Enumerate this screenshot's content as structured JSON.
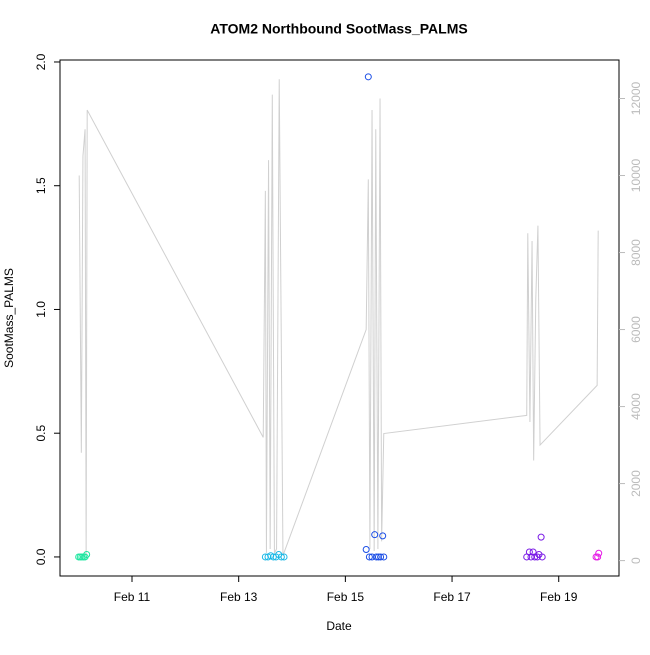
{
  "chart_data": {
    "type": "scatter",
    "title": "ATOM2 Northbound SootMass_PALMS",
    "x_label": "Date",
    "y_label": "SootMass_PALMS",
    "xlim": [
      9.65,
      20.13
    ],
    "xticks": [
      {
        "value": 11,
        "label": "Feb 11"
      },
      {
        "value": 13,
        "label": "Feb 13"
      },
      {
        "value": 15,
        "label": "Feb 15"
      },
      {
        "value": 17,
        "label": "Feb 17"
      },
      {
        "value": 19,
        "label": "Feb 19"
      }
    ],
    "ylim": [
      -0.077,
      2.008
    ],
    "yticks": [
      {
        "value": 0,
        "label": "0.0"
      },
      {
        "value": 0.5,
        "label": "0.5"
      },
      {
        "value": 1,
        "label": "1.0"
      },
      {
        "value": 1.5,
        "label": "1.5"
      },
      {
        "value": 2,
        "label": "2.0"
      }
    ],
    "y2lim": [
      -400,
      13000
    ],
    "y2ticks": [
      0,
      2000,
      4000,
      6000,
      8000,
      10000,
      12000
    ],
    "series": [
      {
        "color": "#d0d0d0",
        "axis": "y2",
        "x": [
          10.01,
          10.05,
          10.08,
          10.12,
          10.14,
          10.16,
          13.46,
          13.5,
          13.52,
          13.56,
          13.59,
          13.63,
          13.67,
          13.71,
          13.76,
          13.83,
          15.39,
          15.43,
          15.46,
          15.5,
          15.54,
          15.57,
          15.61,
          15.65,
          15.68,
          15.72,
          18.4,
          18.42,
          18.46,
          18.5,
          18.53,
          18.57,
          18.61,
          18.65,
          19.72,
          19.74
        ],
        "values": [
          10000,
          2800,
          10500,
          11200,
          130,
          11700,
          3200,
          9600,
          200,
          10400,
          300,
          12100,
          200,
          300,
          12500,
          130,
          6000,
          9900,
          300,
          11700,
          250,
          11200,
          300,
          12000,
          500,
          3300,
          3770,
          8500,
          3600,
          8300,
          2600,
          6800,
          8700,
          3000,
          4550,
          8570
        ]
      },
      {
        "color": "#1ee6a0",
        "x": [
          10.0,
          10.03,
          10.06,
          10.09,
          10.12,
          10.15
        ],
        "values": [
          0,
          0,
          0,
          0,
          0,
          0.01
        ]
      },
      {
        "color": "#1ab8e6",
        "x": [
          13.5,
          13.55,
          13.6,
          13.65,
          13.7,
          13.75,
          13.8,
          13.85
        ],
        "values": [
          0,
          0,
          0.005,
          0,
          0,
          0.01,
          0,
          0
        ]
      },
      {
        "color": "#1a4de6",
        "x": [
          15.39,
          15.43,
          15.45,
          15.5,
          15.55,
          15.58,
          15.62,
          15.66,
          15.7,
          15.72
        ],
        "values": [
          0.03,
          1.94,
          0,
          0,
          0.09,
          0,
          0,
          0,
          0.085,
          0
        ]
      },
      {
        "color": "#7a1ae6",
        "x": [
          18.4,
          18.45,
          18.48,
          18.52,
          18.55,
          18.6,
          18.63,
          18.67,
          18.69
        ],
        "values": [
          0,
          0.02,
          0,
          0.02,
          0,
          0,
          0.01,
          0.08,
          0
        ]
      },
      {
        "color": "#e61ae6",
        "x": [
          19.7,
          19.73,
          19.75
        ],
        "values": [
          0,
          0,
          0.015
        ]
      }
    ]
  }
}
